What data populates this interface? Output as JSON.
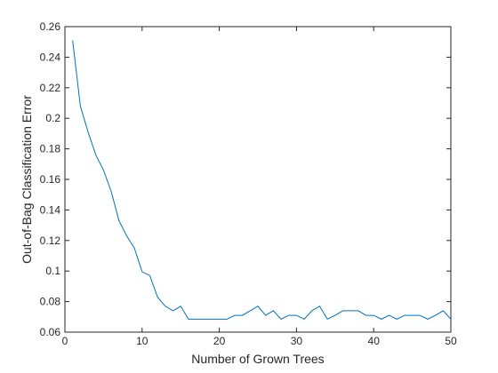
{
  "chart_data": {
    "type": "line",
    "x_label": "Number of Grown Trees",
    "y_label": "Out-of-Bag Classification Error",
    "x": [
      1,
      2,
      3,
      4,
      5,
      6,
      7,
      8,
      9,
      10,
      11,
      12,
      13,
      14,
      15,
      16,
      17,
      18,
      19,
      20,
      21,
      22,
      23,
      24,
      25,
      26,
      27,
      28,
      29,
      30,
      31,
      32,
      33,
      34,
      35,
      36,
      37,
      38,
      39,
      40,
      41,
      42,
      43,
      44,
      45,
      46,
      47,
      48,
      49,
      50
    ],
    "series": [
      {
        "color": "#0072bd",
        "values": [
          0.251,
          0.208,
          0.191,
          0.176,
          0.166,
          0.152,
          0.133,
          0.123,
          0.115,
          0.0995,
          0.097,
          0.083,
          0.077,
          0.074,
          0.077,
          0.0685,
          0.0685,
          0.0685,
          0.0685,
          0.0685,
          0.0685,
          0.071,
          0.071,
          0.074,
          0.077,
          0.071,
          0.074,
          0.0685,
          0.071,
          0.071,
          0.0685,
          0.074,
          0.077,
          0.0685,
          0.071,
          0.074,
          0.074,
          0.074,
          0.071,
          0.071,
          0.0685,
          0.071,
          0.0685,
          0.071,
          0.071,
          0.071,
          0.0685,
          0.071,
          0.074,
          0.0685
        ]
      }
    ],
    "xlim": [
      0,
      50
    ],
    "xticks": [
      0,
      10,
      20,
      30,
      40,
      50
    ],
    "ylim": [
      0.06,
      0.26
    ],
    "yticks": [
      0.06,
      0.08,
      0.1,
      0.12,
      0.14,
      0.16,
      0.18,
      0.2,
      0.22,
      0.24,
      0.26
    ],
    "grid": false
  }
}
